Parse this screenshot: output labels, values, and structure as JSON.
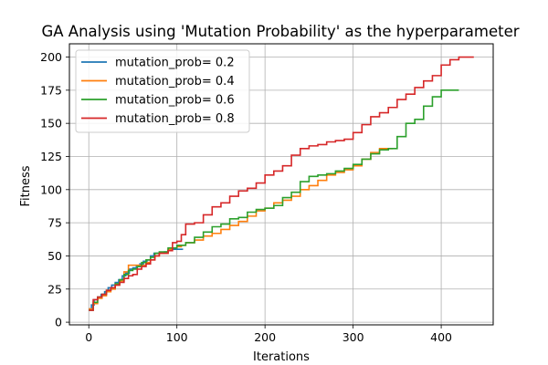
{
  "chart_data": {
    "type": "line",
    "title": "GA Analysis using 'Mutation Probability' as the hyperparameter",
    "xlabel": "Iterations",
    "ylabel": "Fitness",
    "xlim": [
      -22,
      459
    ],
    "ylim": [
      -2,
      210
    ],
    "xticks": [
      0,
      100,
      200,
      300,
      400
    ],
    "yticks": [
      0,
      25,
      50,
      75,
      100,
      125,
      150,
      175,
      200
    ],
    "grid": true,
    "legend_position": "upper-left",
    "series": [
      {
        "name": "mutation_prob= 0.2",
        "color": "#1f77b4",
        "points": [
          [
            0,
            10
          ],
          [
            3,
            13
          ],
          [
            6,
            17
          ],
          [
            10,
            19
          ],
          [
            14,
            21
          ],
          [
            18,
            23
          ],
          [
            22,
            26
          ],
          [
            26,
            28
          ],
          [
            30,
            30
          ],
          [
            34,
            32
          ],
          [
            38,
            35
          ],
          [
            42,
            37
          ],
          [
            46,
            40
          ],
          [
            50,
            41
          ],
          [
            54,
            42
          ],
          [
            58,
            44
          ],
          [
            62,
            46
          ],
          [
            66,
            47
          ],
          [
            70,
            50
          ],
          [
            74,
            52
          ],
          [
            78,
            52
          ],
          [
            82,
            52
          ],
          [
            86,
            53
          ],
          [
            90,
            54
          ],
          [
            94,
            55
          ],
          [
            98,
            55
          ],
          [
            102,
            55
          ],
          [
            107,
            55
          ]
        ]
      },
      {
        "name": "mutation_prob= 0.4",
        "color": "#ff7f0e",
        "points": [
          [
            0,
            10
          ],
          [
            5,
            14
          ],
          [
            10,
            18
          ],
          [
            15,
            20
          ],
          [
            20,
            23
          ],
          [
            25,
            25
          ],
          [
            30,
            28
          ],
          [
            35,
            31
          ],
          [
            40,
            38
          ],
          [
            45,
            43
          ],
          [
            50,
            43
          ],
          [
            55,
            43
          ],
          [
            60,
            43
          ],
          [
            65,
            45
          ],
          [
            70,
            47
          ],
          [
            75,
            50
          ],
          [
            80,
            52
          ],
          [
            90,
            55
          ],
          [
            95,
            56
          ],
          [
            100,
            57
          ],
          [
            105,
            58
          ],
          [
            110,
            60
          ],
          [
            120,
            62
          ],
          [
            130,
            65
          ],
          [
            140,
            67
          ],
          [
            150,
            70
          ],
          [
            160,
            73
          ],
          [
            170,
            76
          ],
          [
            180,
            80
          ],
          [
            190,
            84
          ],
          [
            200,
            86
          ],
          [
            210,
            90
          ],
          [
            220,
            92
          ],
          [
            230,
            95
          ],
          [
            240,
            100
          ],
          [
            250,
            103
          ],
          [
            260,
            107
          ],
          [
            270,
            111
          ],
          [
            280,
            113
          ],
          [
            290,
            115
          ],
          [
            300,
            118
          ],
          [
            310,
            123
          ],
          [
            320,
            128
          ],
          [
            330,
            131
          ],
          [
            340,
            131
          ],
          [
            345,
            131
          ]
        ]
      },
      {
        "name": "mutation_prob= 0.6",
        "color": "#2ca02c",
        "points": [
          [
            0,
            9
          ],
          [
            5,
            15
          ],
          [
            10,
            19
          ],
          [
            15,
            21
          ],
          [
            20,
            24
          ],
          [
            25,
            26
          ],
          [
            30,
            29
          ],
          [
            35,
            32
          ],
          [
            40,
            36
          ],
          [
            45,
            39
          ],
          [
            50,
            40
          ],
          [
            55,
            42
          ],
          [
            60,
            45
          ],
          [
            65,
            47
          ],
          [
            70,
            49
          ],
          [
            75,
            52
          ],
          [
            80,
            53
          ],
          [
            90,
            56
          ],
          [
            100,
            58
          ],
          [
            110,
            60
          ],
          [
            120,
            64
          ],
          [
            130,
            68
          ],
          [
            140,
            72
          ],
          [
            150,
            74
          ],
          [
            160,
            78
          ],
          [
            170,
            79
          ],
          [
            180,
            83
          ],
          [
            190,
            85
          ],
          [
            200,
            86
          ],
          [
            210,
            88
          ],
          [
            220,
            94
          ],
          [
            230,
            98
          ],
          [
            240,
            106
          ],
          [
            250,
            110
          ],
          [
            260,
            111
          ],
          [
            270,
            112
          ],
          [
            280,
            114
          ],
          [
            290,
            116
          ],
          [
            300,
            119
          ],
          [
            310,
            123
          ],
          [
            320,
            127
          ],
          [
            330,
            130
          ],
          [
            340,
            131
          ],
          [
            350,
            140
          ],
          [
            360,
            150
          ],
          [
            370,
            153
          ],
          [
            380,
            163
          ],
          [
            390,
            170
          ],
          [
            400,
            175
          ],
          [
            410,
            175
          ],
          [
            420,
            175
          ]
        ]
      },
      {
        "name": "mutation_prob= 0.8",
        "color": "#d62728",
        "points": [
          [
            0,
            9
          ],
          [
            5,
            17
          ],
          [
            10,
            19
          ],
          [
            15,
            21
          ],
          [
            20,
            24
          ],
          [
            25,
            26
          ],
          [
            30,
            28
          ],
          [
            35,
            30
          ],
          [
            40,
            33
          ],
          [
            45,
            35
          ],
          [
            50,
            36
          ],
          [
            55,
            40
          ],
          [
            60,
            42
          ],
          [
            65,
            44
          ],
          [
            70,
            47
          ],
          [
            75,
            50
          ],
          [
            80,
            52
          ],
          [
            90,
            54
          ],
          [
            95,
            60
          ],
          [
            100,
            61
          ],
          [
            105,
            66
          ],
          [
            110,
            74
          ],
          [
            120,
            75
          ],
          [
            130,
            81
          ],
          [
            140,
            87
          ],
          [
            150,
            90
          ],
          [
            160,
            95
          ],
          [
            170,
            99
          ],
          [
            180,
            101
          ],
          [
            190,
            105
          ],
          [
            200,
            111
          ],
          [
            210,
            114
          ],
          [
            220,
            118
          ],
          [
            230,
            126
          ],
          [
            240,
            131
          ],
          [
            250,
            133
          ],
          [
            260,
            134
          ],
          [
            270,
            136
          ],
          [
            280,
            137
          ],
          [
            290,
            138
          ],
          [
            300,
            143
          ],
          [
            310,
            149
          ],
          [
            320,
            155
          ],
          [
            330,
            158
          ],
          [
            340,
            162
          ],
          [
            350,
            168
          ],
          [
            360,
            172
          ],
          [
            370,
            177
          ],
          [
            380,
            182
          ],
          [
            390,
            186
          ],
          [
            400,
            194
          ],
          [
            410,
            198
          ],
          [
            420,
            200
          ],
          [
            430,
            200
          ],
          [
            437,
            200
          ]
        ]
      }
    ]
  }
}
